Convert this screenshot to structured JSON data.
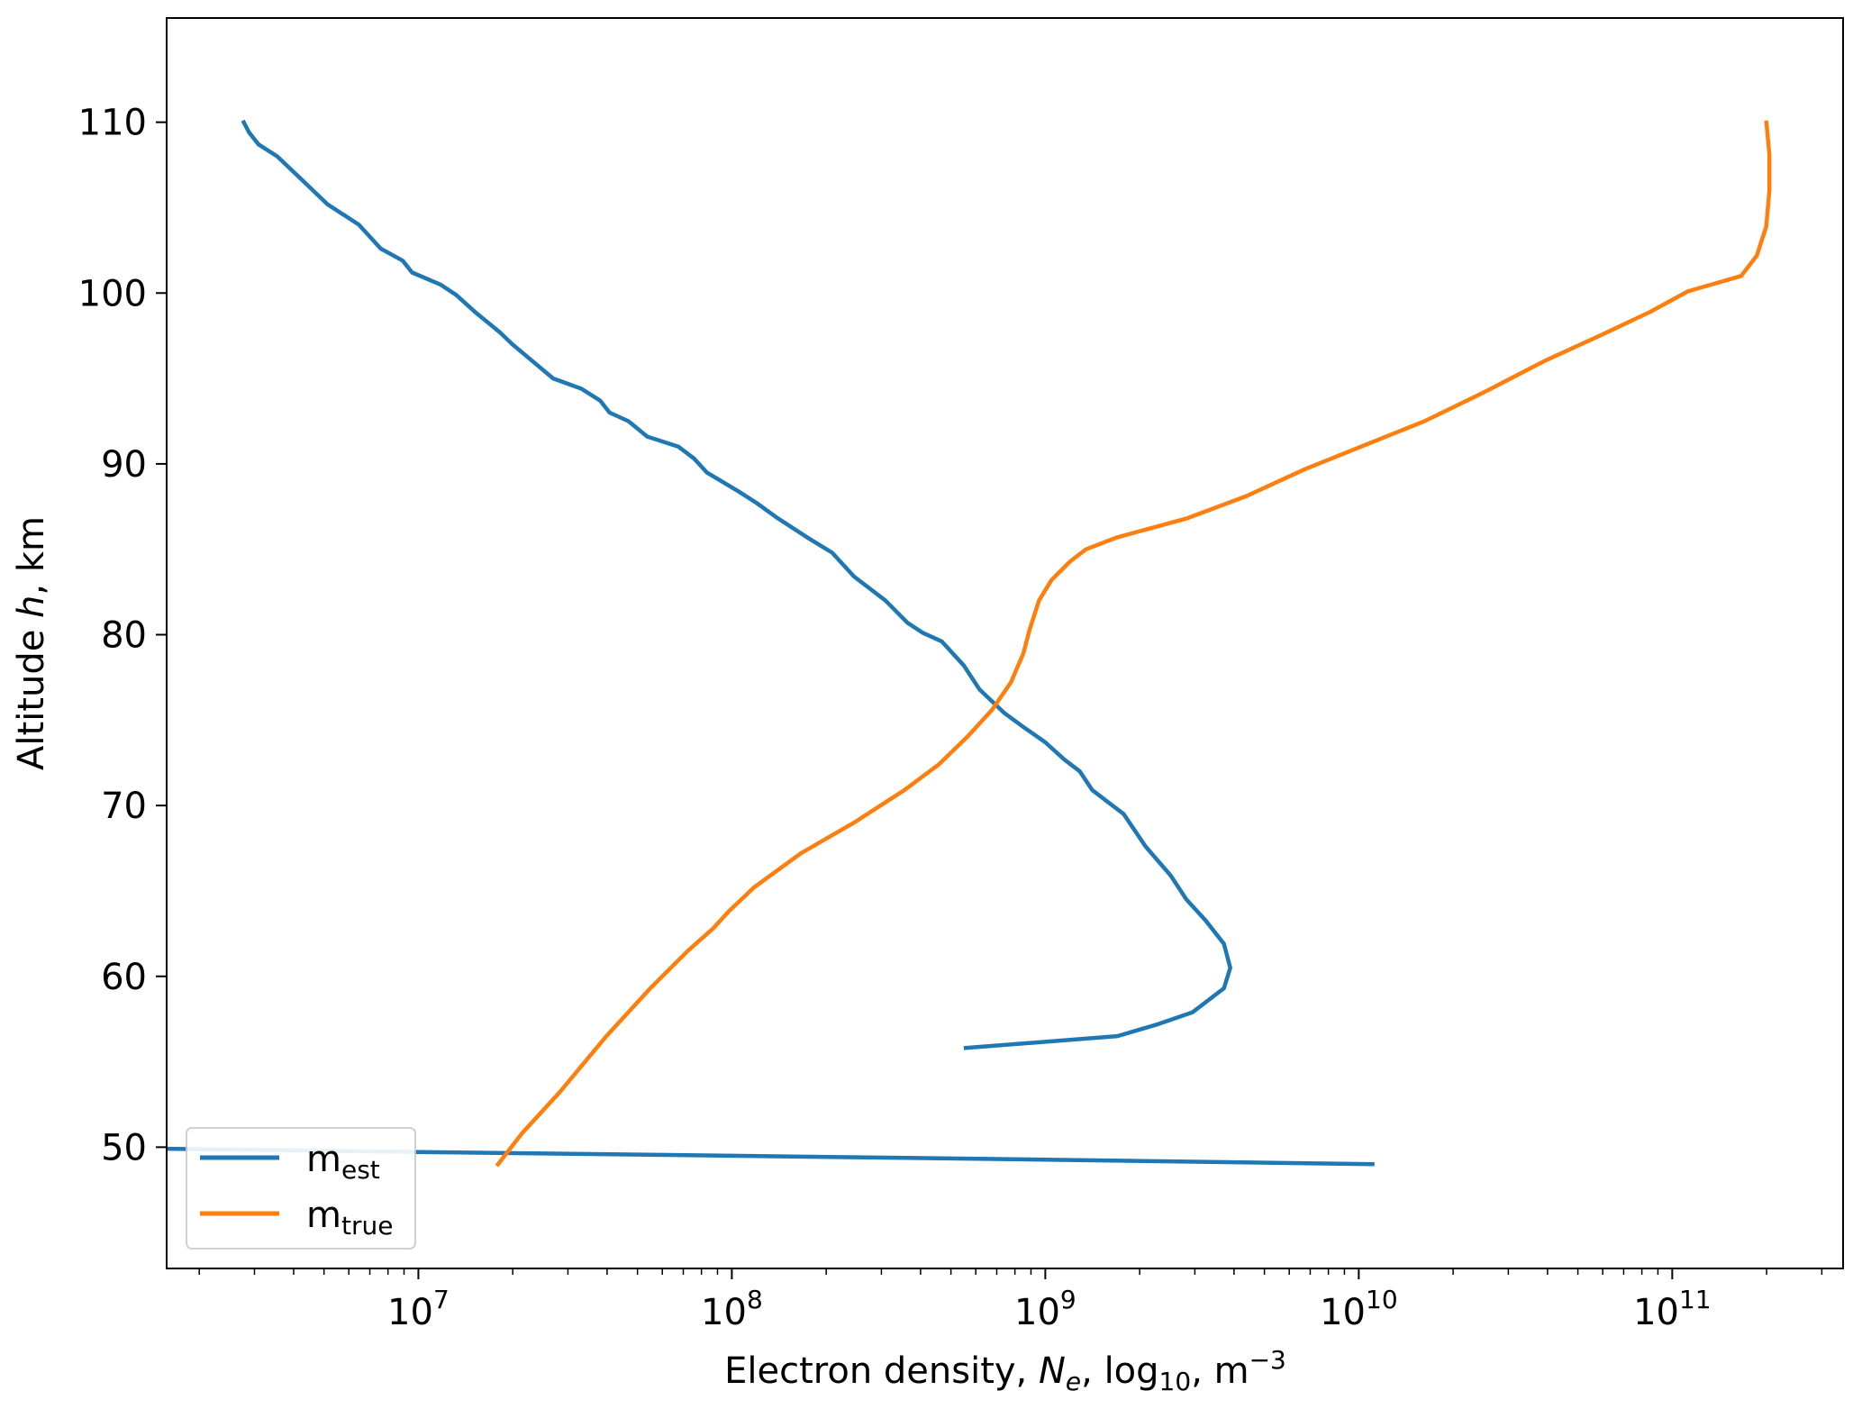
{
  "chart_data": {
    "type": "line",
    "title": "",
    "xlabel": "Electron density, N_e, log10, m^-3",
    "xlabel_parts": {
      "pre": "Electron density, ",
      "sym": "N",
      "sym_sub": "e",
      "mid": ", log",
      "mid_sub": "10",
      "post": ", m",
      "post_sup": "−3"
    },
    "ylabel": "Altitude h, km",
    "ylabel_parts": {
      "pre": "Altitude ",
      "sym": "h",
      "post": ", km"
    },
    "xscale": "log",
    "xlim_log10": [
      6.197,
      11.545
    ],
    "ylim": [
      42.9,
      116.1
    ],
    "grid": false,
    "x_ticks": [
      {
        "log": 7,
        "base": "10",
        "exp": "7"
      },
      {
        "log": 8,
        "base": "10",
        "exp": "8"
      },
      {
        "log": 9,
        "base": "10",
        "exp": "9"
      },
      {
        "log": 10,
        "base": "10",
        "exp": "10"
      },
      {
        "log": 11,
        "base": "10",
        "exp": "11"
      }
    ],
    "y_ticks": [
      "50",
      "60",
      "70",
      "80",
      "90",
      "100",
      "110"
    ],
    "legend": {
      "placement": "lower-left",
      "entries": [
        {
          "name": "m",
          "sub": "est",
          "color": "#1f77b4"
        },
        {
          "name": "m",
          "sub": "true",
          "color": "#ff7f0e"
        }
      ]
    },
    "series": [
      {
        "name": "m_est",
        "color": "#1f77b4",
        "x_log10": [
          6.44,
          6.46,
          6.49,
          6.55,
          6.63,
          6.71,
          6.81,
          6.88,
          6.95,
          6.98,
          7.07,
          7.12,
          7.18,
          7.26,
          7.3,
          7.43,
          7.52,
          7.58,
          7.61,
          7.67,
          7.73,
          7.83,
          7.88,
          7.92,
          8.02,
          8.08,
          8.14,
          8.24,
          8.32,
          8.39,
          8.49,
          8.56,
          8.61,
          8.67,
          8.74,
          8.79,
          8.87,
          8.93,
          9.0,
          9.06,
          9.11,
          9.15,
          9.25,
          9.32,
          9.4,
          9.45,
          9.51,
          9.57,
          9.59,
          9.57,
          9.47,
          9.36,
          9.23,
          8.74,
          null,
          6.0,
          7.0,
          8.0,
          9.0,
          10.05
        ],
        "y": [
          110.1,
          109.4,
          108.7,
          108.0,
          106.6,
          105.2,
          104.0,
          102.6,
          101.9,
          101.2,
          100.5,
          99.9,
          98.9,
          97.7,
          97.0,
          95.0,
          94.4,
          93.7,
          93.0,
          92.5,
          91.6,
          91.0,
          90.3,
          89.5,
          88.4,
          87.7,
          86.9,
          85.7,
          84.8,
          83.4,
          82.0,
          80.7,
          80.1,
          79.6,
          78.2,
          76.8,
          75.4,
          74.6,
          73.7,
          72.7,
          72.0,
          70.9,
          69.5,
          67.6,
          65.9,
          64.5,
          63.3,
          61.9,
          60.5,
          59.3,
          57.9,
          57.2,
          56.5,
          55.8,
          null,
          49.95,
          49.72,
          49.5,
          49.27,
          49.0
        ]
      },
      {
        "name": "m_true",
        "color": "#ff7f0e",
        "x_log10": [
          7.25,
          7.33,
          7.45,
          7.6,
          7.74,
          7.86,
          7.94,
          7.99,
          8.07,
          8.22,
          8.39,
          8.55,
          8.66,
          8.75,
          8.83,
          8.89,
          8.93,
          8.95,
          8.98,
          9.02,
          9.08,
          9.13,
          9.23,
          9.45,
          9.64,
          9.83,
          10.02,
          10.21,
          10.4,
          10.59,
          10.78,
          10.93,
          11.05,
          11.22,
          11.27,
          11.3,
          11.31,
          11.31,
          11.3
        ],
        "y": [
          48.9,
          50.8,
          53.2,
          56.5,
          59.3,
          61.5,
          62.8,
          63.8,
          65.2,
          67.2,
          69.0,
          70.9,
          72.4,
          74.0,
          75.6,
          77.2,
          78.9,
          80.3,
          82.0,
          83.2,
          84.3,
          85.0,
          85.7,
          86.8,
          88.1,
          89.7,
          91.1,
          92.5,
          94.2,
          96.0,
          97.6,
          98.9,
          100.1,
          101.0,
          102.2,
          103.9,
          106.0,
          108.1,
          110.1
        ]
      }
    ]
  }
}
